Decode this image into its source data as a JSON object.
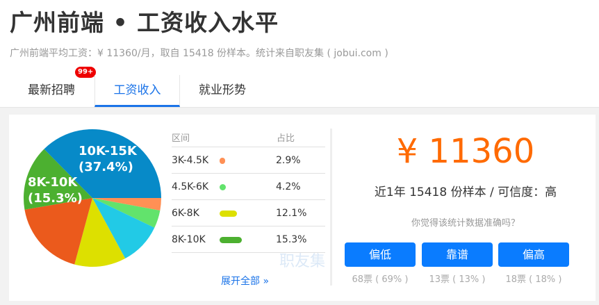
{
  "header": {
    "title": "广州前端 • 工资收入水平",
    "subtitle": "广州前端平均工资：¥ 11360/月，取自 15418 份样本。统计来自职友集 ( jobui.com )"
  },
  "tabs": [
    {
      "label": "最新招聘",
      "badge": "99+"
    },
    {
      "label": "工资收入",
      "active": true
    },
    {
      "label": "就业形势"
    }
  ],
  "table": {
    "col_range": "区间",
    "col_share": "占比",
    "rows": [
      {
        "range": "3K-4.5K",
        "share": "2.9%",
        "color": "#ff9055"
      },
      {
        "range": "4.5K-6K",
        "share": "4.2%",
        "color": "#62e36c"
      },
      {
        "range": "6K-8K",
        "share": "12.1%",
        "color": "#dde000"
      },
      {
        "range": "8K-10K",
        "share": "15.3%",
        "color": "#4cb030"
      }
    ],
    "expand": "展开全部 »",
    "watermark": "职友集"
  },
  "chart_data": {
    "type": "pie",
    "start": "3 o'clock, clockwise",
    "slices": [
      {
        "value": 2.9,
        "color": "#ff9055"
      },
      {
        "value": 4.2,
        "color": "#62e36c"
      },
      {
        "value": 10.0,
        "color": "#22cae6"
      },
      {
        "value": 12.1,
        "color": "#dde000"
      },
      {
        "value": 18.1,
        "color": "#eb5a1c"
      },
      {
        "value": 15.3,
        "color": "#4cb030",
        "label": "8K-10K",
        "label2": "(15.3%)"
      },
      {
        "value": 37.4,
        "color": "#078ac8",
        "label": "10K-15K",
        "label2": "(37.4%)"
      }
    ]
  },
  "summary": {
    "salary": "¥ 11360",
    "info": "近1年 15418 份样本 / 可信度：高",
    "question": "你觉得该统计数据准确吗？"
  },
  "votes": [
    {
      "label": "偏低",
      "count": "68票 ( 69% )"
    },
    {
      "label": "靠谱",
      "count": "13票 ( 13% )"
    },
    {
      "label": "偏高",
      "count": "18票 ( 18% )"
    }
  ]
}
